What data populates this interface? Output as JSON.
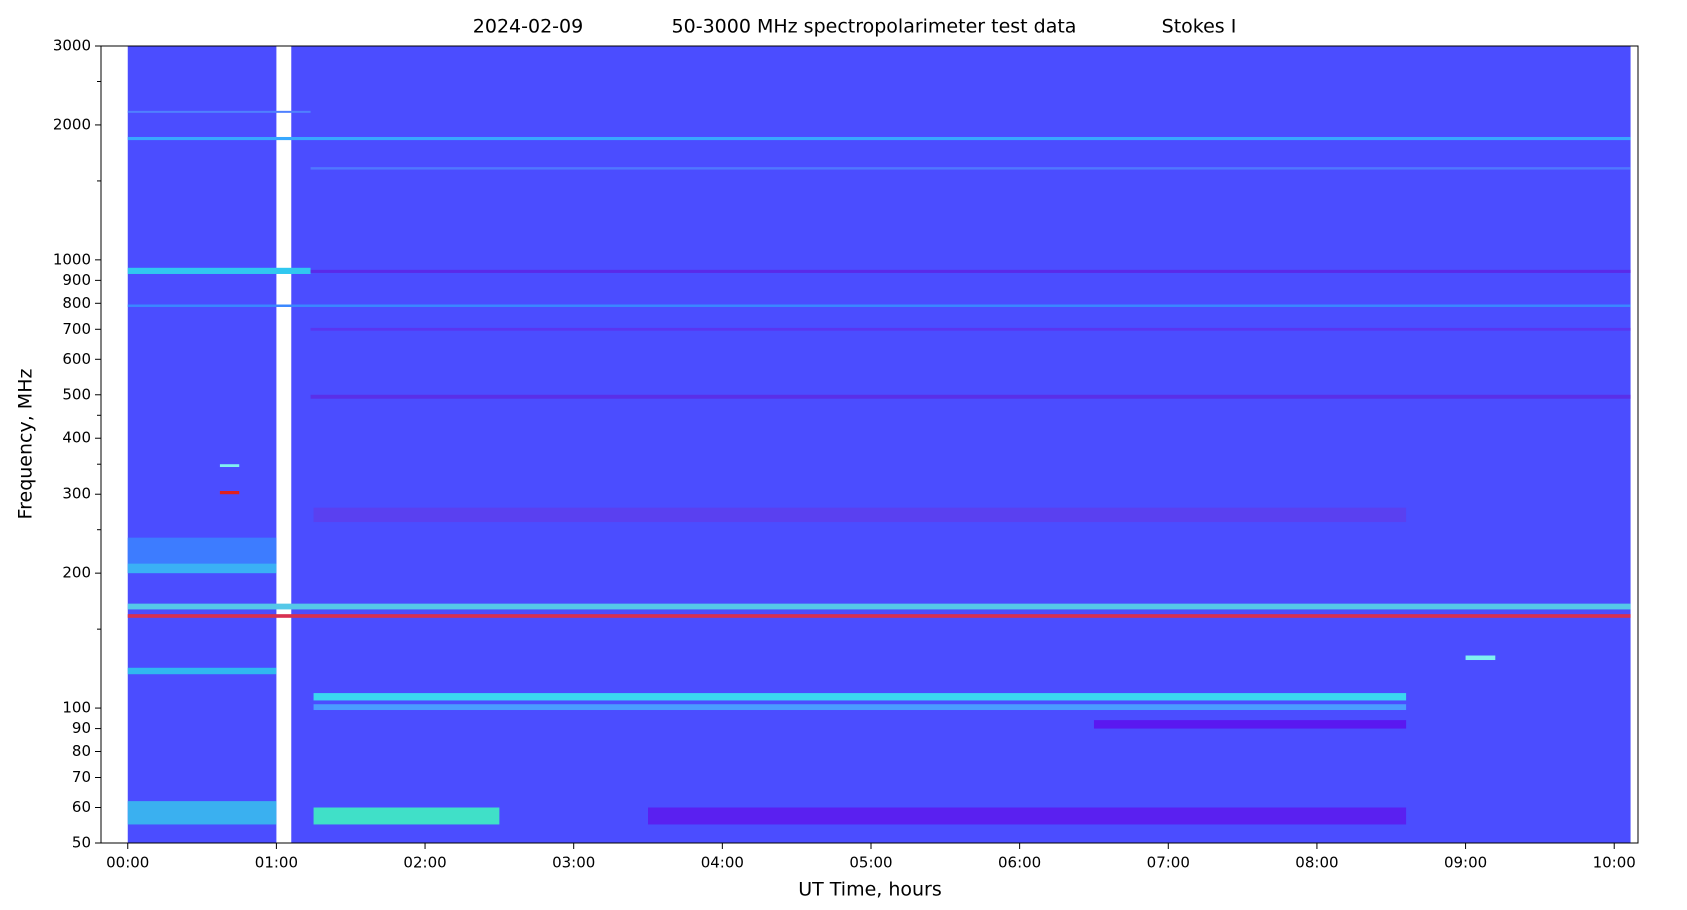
{
  "chart_data": {
    "type": "spectrogram",
    "title_parts": [
      "2024-02-09",
      "50-3000 MHz spectropolarimeter test data",
      "Stokes I"
    ],
    "xlabel": "UT Time, hours",
    "ylabel": "Frequency, MHz",
    "xlim": [
      -0.18,
      10.16
    ],
    "ylim": [
      50,
      3000
    ],
    "yscale": "log",
    "xticks": [
      {
        "value": 0,
        "label": "00:00"
      },
      {
        "value": 1,
        "label": "01:00"
      },
      {
        "value": 2,
        "label": "02:00"
      },
      {
        "value": 3,
        "label": "03:00"
      },
      {
        "value": 4,
        "label": "04:00"
      },
      {
        "value": 5,
        "label": "05:00"
      },
      {
        "value": 6,
        "label": "06:00"
      },
      {
        "value": 7,
        "label": "07:00"
      },
      {
        "value": 8,
        "label": "08:00"
      },
      {
        "value": 9,
        "label": "09:00"
      },
      {
        "value": 10,
        "label": "10:00"
      }
    ],
    "yticks": [
      50,
      60,
      70,
      80,
      90,
      100,
      200,
      300,
      400,
      500,
      600,
      700,
      800,
      900,
      1000,
      2000,
      3000
    ],
    "yminorticks": [
      150,
      250,
      350,
      450,
      1500,
      2500
    ],
    "segments": [
      {
        "time": [
          0,
          1.0
        ],
        "color": "#4b4dff"
      },
      {
        "time": [
          1.1,
          10.11
        ],
        "color": "#4b4dff"
      }
    ],
    "bands": [
      {
        "freq": [
          1850,
          1880
        ],
        "time": [
          0,
          10.11
        ],
        "color": "#38a8ff"
      },
      {
        "freq": [
          2130,
          2150
        ],
        "time": [
          0,
          1.23
        ],
        "color": "#4f80ff"
      },
      {
        "freq": [
          1590,
          1610
        ],
        "time": [
          1.23,
          10.11
        ],
        "color": "#4f78ff"
      },
      {
        "freq": [
          930,
          960
        ],
        "time": [
          0,
          1.23
        ],
        "color": "#30c8f0"
      },
      {
        "freq": [
          935,
          950
        ],
        "time": [
          1.23,
          10.11
        ],
        "color": "#5a2ae8"
      },
      {
        "freq": [
          785,
          795
        ],
        "time": [
          0,
          10.11
        ],
        "color": "#3a88ff"
      },
      {
        "freq": [
          695,
          705
        ],
        "time": [
          1.23,
          10.11
        ],
        "color": "#5a35f0"
      },
      {
        "freq": [
          490,
          500
        ],
        "time": [
          1.23,
          10.11
        ],
        "color": "#5a2fe8"
      },
      {
        "freq": [
          260,
          280
        ],
        "time": [
          1.25,
          8.6
        ],
        "color": "#5a40f0"
      },
      {
        "freq": [
          200,
          240
        ],
        "time": [
          0,
          1.0
        ],
        "color": "#3d7cff"
      },
      {
        "freq": [
          200,
          210
        ],
        "time": [
          0,
          1.0
        ],
        "color": "#3ab0f5"
      },
      {
        "freq": [
          166,
          171
        ],
        "time": [
          0,
          10.11
        ],
        "color": "#55c8e8"
      },
      {
        "freq": [
          159,
          162
        ],
        "time": [
          0,
          10.11
        ],
        "color": "#d83050"
      },
      {
        "freq": [
          119,
          123
        ],
        "time": [
          0,
          1.0
        ],
        "color": "#30b8f0"
      },
      {
        "freq": [
          104,
          108
        ],
        "time": [
          1.25,
          8.6
        ],
        "color": "#3ad8f0"
      },
      {
        "freq": [
          99,
          102
        ],
        "time": [
          1.25,
          8.6
        ],
        "color": "#4a9cff"
      },
      {
        "freq": [
          90,
          94
        ],
        "time": [
          6.5,
          8.6
        ],
        "color": "#5a18f0"
      },
      {
        "freq": [
          55,
          62
        ],
        "time": [
          0,
          1.0
        ],
        "color": "#3ab0f0"
      },
      {
        "freq": [
          55,
          60
        ],
        "time": [
          1.25,
          2.5
        ],
        "color": "#40e0c8"
      },
      {
        "freq": [
          55,
          60
        ],
        "time": [
          3.5,
          8.6
        ],
        "color": "#5a20f0"
      },
      {
        "freq": [
          300,
          305
        ],
        "time": [
          0.62,
          0.75
        ],
        "color": "#e02020"
      },
      {
        "freq": [
          345,
          350
        ],
        "time": [
          0.62,
          0.75
        ],
        "color": "#80f0f0"
      },
      {
        "freq": [
          128,
          131
        ],
        "time": [
          9.0,
          9.2
        ],
        "color": "#80f0f0"
      }
    ]
  }
}
